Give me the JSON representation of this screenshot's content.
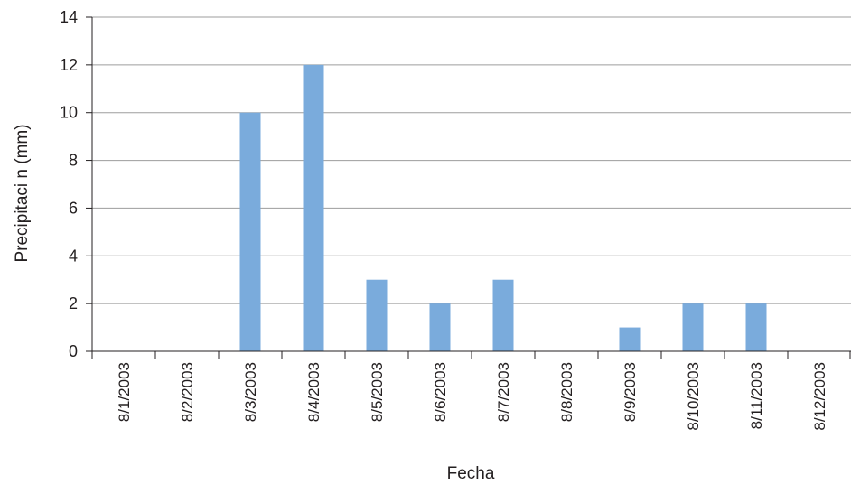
{
  "chart_data": {
    "type": "bar",
    "title": "",
    "xlabel": "Fecha",
    "ylabel": "Precipitaci n (mm)",
    "ylim": [
      0,
      14
    ],
    "yticks": [
      0,
      2,
      4,
      6,
      8,
      10,
      12,
      14
    ],
    "categories": [
      "8/1/2003",
      "8/2/2003",
      "8/3/2003",
      "8/4/2003",
      "8/5/2003",
      "8/6/2003",
      "8/7/2003",
      "8/8/2003",
      "8/9/2003",
      "8/10/2003",
      "8/11/2003",
      "8/12/2003"
    ],
    "values": [
      0,
      0,
      10,
      12,
      3,
      2,
      3,
      0,
      1,
      2,
      2,
      0
    ],
    "grid": true,
    "legend": "none",
    "colors": {
      "bar": "#7aabdc",
      "grid": "#9d9d9d",
      "axis": "#231f20"
    }
  }
}
